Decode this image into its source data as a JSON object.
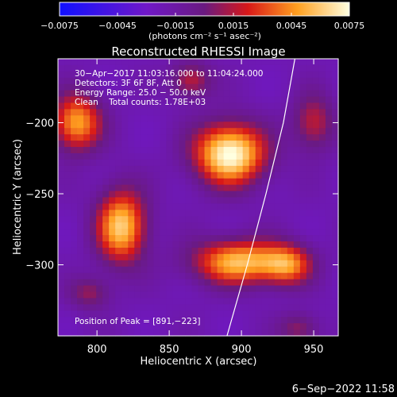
{
  "chart_data": {
    "type": "heatmap",
    "title": "Reconstructed RHESSI Image",
    "xlabel": "Heliocentric X (arcsec)",
    "ylabel": "Heliocentric Y (arcsec)",
    "xlim": [
      773,
      967
    ],
    "ylim": [
      -350,
      -155
    ],
    "x_ticks": [
      800,
      850,
      900,
      950
    ],
    "y_ticks": [
      -200,
      -250,
      -300
    ],
    "x_tick_labels": [
      "800",
      "850",
      "900",
      "950"
    ],
    "y_tick_labels": [
      "−200",
      "−250",
      "−300"
    ],
    "colorbar": {
      "range": [
        -0.0075,
        0.0075
      ],
      "ticks": [
        -0.0075,
        -0.0045,
        -0.0015,
        0.0015,
        0.0045,
        0.0075
      ],
      "tick_labels": [
        "−0.0075",
        "−0.0045",
        "−0.0015",
        "0.0015",
        "0.0045",
        "0.0075"
      ],
      "unit_label": "(photons cm⁻² s⁻¹ asec⁻²)"
    },
    "annotations": [
      "30−Apr−2017 11:03:16.000 to 11:04:24.000",
      "Detectors: 3F 6F 8F, Att 0",
      "Energy Range: 25.0 − 50.0 keV",
      "Clean    Total counts: 1.78E+03"
    ],
    "peak_label": "Position of Peak = [891,−223]",
    "sources": [
      {
        "x": 892,
        "y": -222,
        "amp": 1.0,
        "sx": 17,
        "sy": 15
      },
      {
        "x": 817,
        "y": -273,
        "amp": 0.82,
        "sx": 12,
        "sy": 18
      },
      {
        "x": 786,
        "y": -200,
        "amp": 0.72,
        "sx": 12,
        "sy": 14
      },
      {
        "x": 898,
        "y": -298,
        "amp": 0.78,
        "sx": 22,
        "sy": 11
      },
      {
        "x": 932,
        "y": -300,
        "amp": 0.55,
        "sx": 12,
        "sy": 10
      },
      {
        "x": 865,
        "y": -170,
        "amp": 0.4,
        "sx": 10,
        "sy": 9
      },
      {
        "x": 795,
        "y": -320,
        "amp": 0.3,
        "sx": 10,
        "sy": 8
      },
      {
        "x": 940,
        "y": -345,
        "amp": 0.3,
        "sx": 10,
        "sy": 8
      },
      {
        "x": 950,
        "y": -200,
        "amp": 0.4,
        "sx": 10,
        "sy": 14
      }
    ],
    "limb_curve": [
      [
        890,
        -350
      ],
      [
        904,
        -300
      ],
      [
        917,
        -250
      ],
      [
        929,
        -200
      ],
      [
        937,
        -155
      ]
    ]
  },
  "footer": {
    "date": "6−Sep−2022 11:58"
  }
}
